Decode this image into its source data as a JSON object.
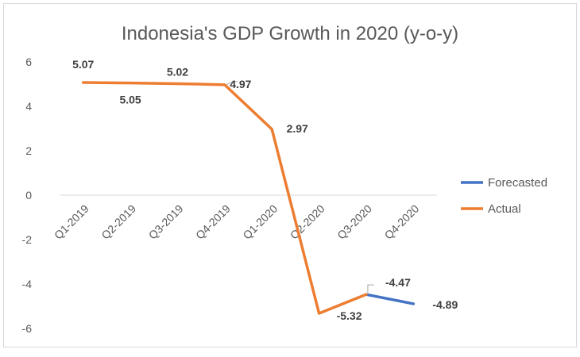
{
  "chart_data": {
    "type": "line",
    "title": "Indonesia's GDP Growth in 2020 (y-o-y)",
    "xlabel": "",
    "ylabel": "",
    "categories": [
      "Q1-2019",
      "Q2-2019",
      "Q3-2019",
      "Q4-2019",
      "Q1-2020",
      "Q2-2020",
      "Q3-2020",
      "Q4-2020"
    ],
    "ylim": [
      -6,
      6
    ],
    "yticks": [
      -6,
      -4,
      -2,
      0,
      2,
      4,
      6
    ],
    "grid": false,
    "legend_position": "right",
    "series": [
      {
        "name": "Forecasted",
        "color": "#4472c4",
        "values": [
          null,
          null,
          null,
          null,
          null,
          null,
          -4.47,
          -4.89
        ]
      },
      {
        "name": "Actual",
        "color": "#ed7d31",
        "values": [
          5.07,
          5.05,
          5.02,
          4.97,
          2.97,
          -5.32,
          -4.47,
          null
        ]
      }
    ],
    "data_labels": [
      {
        "category_index": 0,
        "text": "5.07"
      },
      {
        "category_index": 1,
        "text": "5.05"
      },
      {
        "category_index": 2,
        "text": "5.02"
      },
      {
        "category_index": 3,
        "text": "4.97"
      },
      {
        "category_index": 4,
        "text": "2.97"
      },
      {
        "category_index": 5,
        "text": "-5.32"
      },
      {
        "category_index": 6,
        "text": "-4.47"
      },
      {
        "category_index": 7,
        "text": "-4.89"
      }
    ]
  }
}
